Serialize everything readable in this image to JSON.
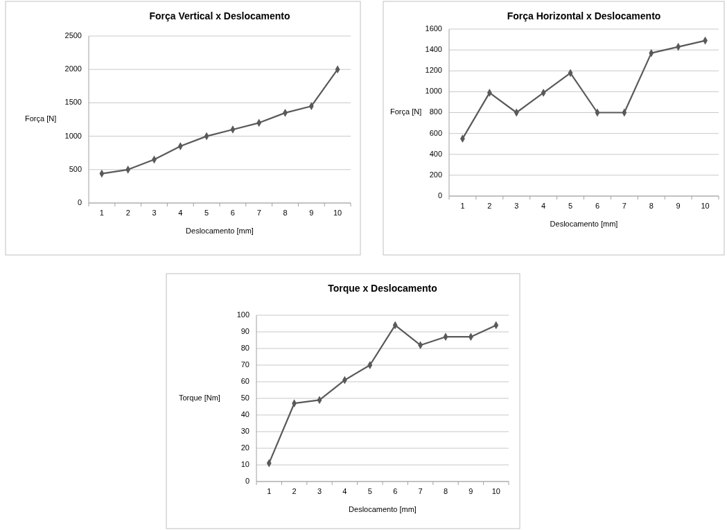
{
  "chart_data": [
    {
      "type": "line",
      "title": "Força Vertical x Deslocamento",
      "xlabel": "Deslocamento [mm]",
      "ylabel": "Força [N]",
      "categories": [
        "1",
        "2",
        "3",
        "4",
        "5",
        "6",
        "7",
        "8",
        "9",
        "10"
      ],
      "series": [
        {
          "color": "#595959",
          "values": [
            440,
            500,
            650,
            850,
            1000,
            1100,
            1200,
            1350,
            1450,
            2000
          ]
        }
      ],
      "ylim": [
        0,
        2500
      ],
      "yticks": [
        0,
        500,
        1000,
        1500,
        2000,
        2500
      ],
      "grid": "y",
      "marker": "diamond"
    },
    {
      "type": "line",
      "title": "Força Horizontal x Deslocamento",
      "xlabel": "Deslocamento [mm]",
      "ylabel": "Força [N]",
      "categories": [
        "1",
        "2",
        "3",
        "4",
        "5",
        "6",
        "7",
        "8",
        "9",
        "10"
      ],
      "series": [
        {
          "color": "#595959",
          "values": [
            550,
            990,
            800,
            990,
            1180,
            800,
            800,
            1370,
            1430,
            1490
          ]
        }
      ],
      "ylim": [
        0,
        1600
      ],
      "yticks": [
        0,
        200,
        400,
        600,
        800,
        1000,
        1200,
        1400,
        1600
      ],
      "grid": "y",
      "marker": "diamond"
    },
    {
      "type": "line",
      "title": "Torque x Deslocamento",
      "xlabel": "Deslocamento  [mm]",
      "ylabel": "Torque [Nm]",
      "categories": [
        "1",
        "2",
        "3",
        "4",
        "5",
        "6",
        "7",
        "8",
        "9",
        "10"
      ],
      "series": [
        {
          "color": "#595959",
          "values": [
            11,
            47,
            49,
            61,
            70,
            94,
            82,
            87,
            87,
            94
          ]
        }
      ],
      "ylim": [
        0,
        100
      ],
      "yticks": [
        0,
        10,
        20,
        30,
        40,
        50,
        60,
        70,
        80,
        90,
        100
      ],
      "grid": "y",
      "marker": "diamond"
    }
  ]
}
